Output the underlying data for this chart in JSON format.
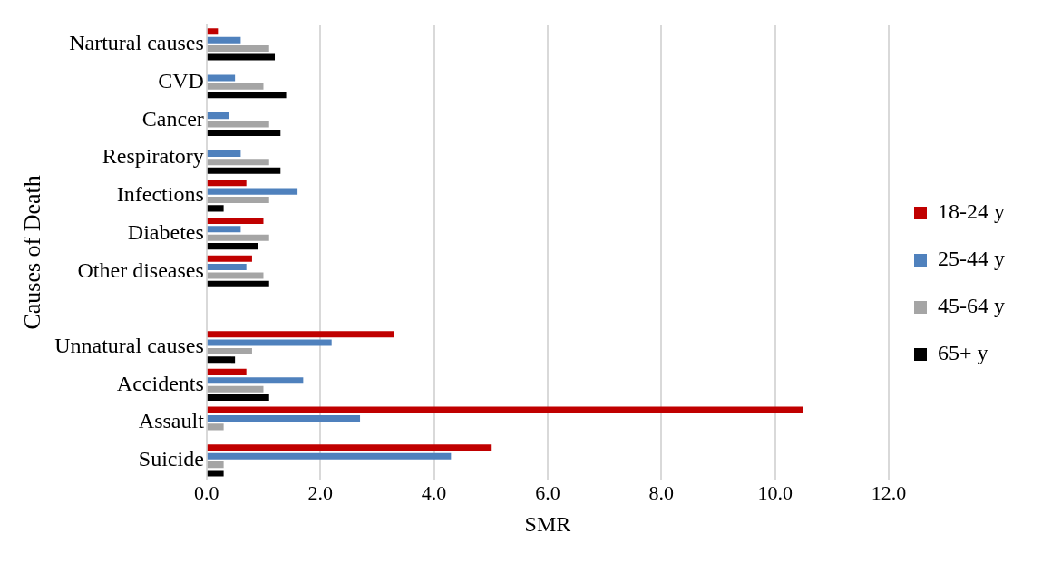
{
  "chart_data": {
    "type": "bar",
    "orientation": "horizontal",
    "xlabel": "SMR",
    "ylabel": "Causes of Death",
    "categories": [
      "Nartural causes",
      "CVD",
      "Cancer",
      "Respiratory",
      "Infections",
      "Diabetes",
      "Other diseases",
      null,
      "Unnatural causes",
      "Accidents",
      "Assault",
      "Suicide"
    ],
    "series": [
      {
        "name": "18-24 y",
        "color": "#c00000",
        "values": [
          0.2,
          null,
          null,
          null,
          0.7,
          1.0,
          0.8,
          null,
          3.3,
          0.7,
          10.5,
          5.0
        ]
      },
      {
        "name": "25-44 y",
        "color": "#4f81bd",
        "values": [
          0.6,
          0.5,
          0.4,
          0.6,
          1.6,
          0.6,
          0.7,
          null,
          2.2,
          1.7,
          2.7,
          4.3
        ]
      },
      {
        "name": "45-64 y",
        "color": "#a5a5a5",
        "values": [
          1.1,
          1.0,
          1.1,
          1.1,
          1.1,
          1.1,
          1.0,
          null,
          0.8,
          1.0,
          0.3,
          0.3
        ]
      },
      {
        "name": "65+ y",
        "color": "#000000",
        "values": [
          1.2,
          1.4,
          1.3,
          1.3,
          0.3,
          0.9,
          1.1,
          null,
          0.5,
          1.1,
          null,
          0.3
        ]
      }
    ],
    "xlim": [
      0,
      12
    ],
    "xticks": [
      {
        "value": 0,
        "label": "0.0"
      },
      {
        "value": 2,
        "label": "2.0"
      },
      {
        "value": 4,
        "label": "4.0"
      },
      {
        "value": 6,
        "label": "6.0"
      },
      {
        "value": 8,
        "label": "8.0"
      },
      {
        "value": 10,
        "label": "10.0"
      },
      {
        "value": 12,
        "label": "12.0"
      }
    ],
    "grid": "x",
    "legend": "right"
  }
}
